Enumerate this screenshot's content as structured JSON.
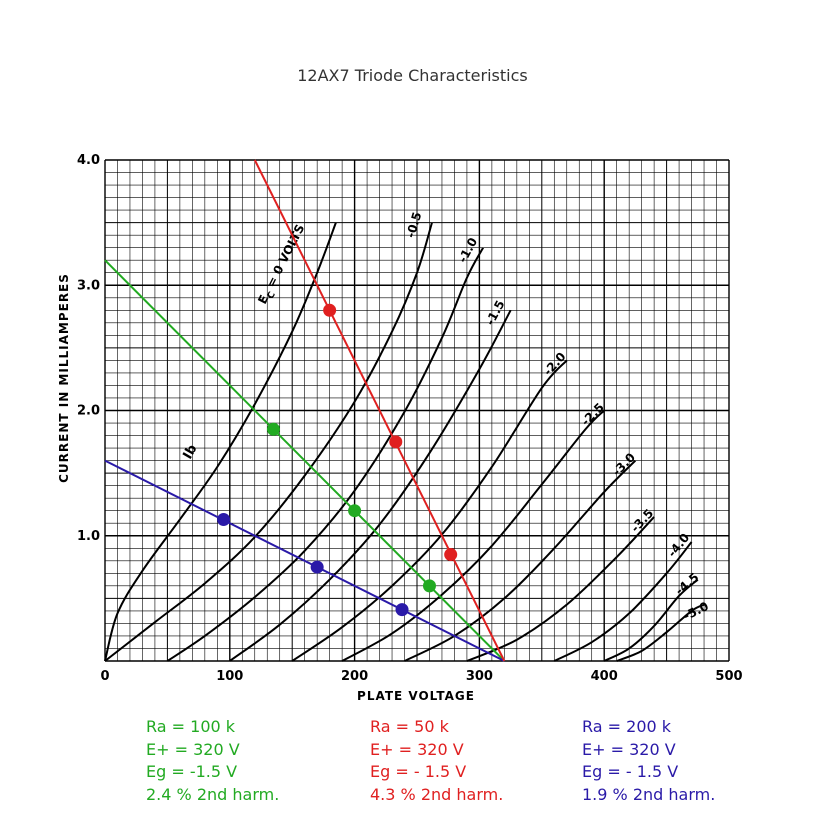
{
  "chart_data": {
    "type": "line",
    "title": "12AX7 Triode Characteristics",
    "xlabel": "PLATE VOLTAGE",
    "ylabel": "CURRENT IN MILLIAMPERES",
    "xlim": [
      0,
      500
    ],
    "ylim": [
      0,
      4.0
    ],
    "x_ticks": [
      {
        "value": 0,
        "label": "0"
      },
      {
        "value": 100,
        "label": "100"
      },
      {
        "value": 200,
        "label": "200"
      },
      {
        "value": 300,
        "label": "300"
      },
      {
        "value": 400,
        "label": "400"
      },
      {
        "value": 500,
        "label": "500"
      }
    ],
    "y_ticks": [
      {
        "value": 1.0,
        "label": "1.0"
      },
      {
        "value": 2.0,
        "label": "2.0"
      },
      {
        "value": 3.0,
        "label": "3.0"
      },
      {
        "value": 4.0,
        "label": "4.0"
      }
    ],
    "grid": true,
    "curve_label_prefix": "E",
    "curve_label_sub": "C",
    "curve_label_suffix": " = 0 VOLTS",
    "ib_label": "Ib",
    "grid_curves": [
      {
        "grid_voltage": "0",
        "label": "",
        "points": [
          [
            0,
            0
          ],
          [
            10,
            0.38
          ],
          [
            30,
            0.72
          ],
          [
            60,
            1.13
          ],
          [
            90,
            1.55
          ],
          [
            120,
            2.05
          ],
          [
            150,
            2.63
          ],
          [
            170,
            3.1
          ],
          [
            185,
            3.5
          ]
        ]
      },
      {
        "grid_voltage": "-0.5",
        "label": "-0.5",
        "points": [
          [
            0,
            0
          ],
          [
            40,
            0.31
          ],
          [
            80,
            0.62
          ],
          [
            120,
            0.99
          ],
          [
            160,
            1.48
          ],
          [
            200,
            2.07
          ],
          [
            230,
            2.63
          ],
          [
            250,
            3.1
          ],
          [
            262,
            3.5
          ]
        ]
      },
      {
        "grid_voltage": "-1.0",
        "label": "-1.0",
        "points": [
          [
            50,
            0
          ],
          [
            80,
            0.2
          ],
          [
            120,
            0.51
          ],
          [
            160,
            0.88
          ],
          [
            200,
            1.36
          ],
          [
            240,
            1.99
          ],
          [
            270,
            2.58
          ],
          [
            290,
            3.06
          ],
          [
            303,
            3.3
          ]
        ]
      },
      {
        "grid_voltage": "-1.5",
        "label": "-1.5",
        "points": [
          [
            100,
            0
          ],
          [
            140,
            0.29
          ],
          [
            180,
            0.65
          ],
          [
            220,
            1.09
          ],
          [
            260,
            1.66
          ],
          [
            300,
            2.33
          ],
          [
            325,
            2.8
          ]
        ]
      },
      {
        "grid_voltage": "-2.0",
        "label": "-2.0",
        "points": [
          [
            150,
            0
          ],
          [
            190,
            0.27
          ],
          [
            230,
            0.6
          ],
          [
            270,
            1.01
          ],
          [
            310,
            1.55
          ],
          [
            350,
            2.18
          ],
          [
            370,
            2.4
          ]
        ]
      },
      {
        "grid_voltage": "-2.5",
        "label": "-2.5",
        "points": [
          [
            190,
            0
          ],
          [
            230,
            0.22
          ],
          [
            270,
            0.53
          ],
          [
            310,
            0.92
          ],
          [
            350,
            1.41
          ],
          [
            385,
            1.85
          ],
          [
            400,
            2.0
          ]
        ]
      },
      {
        "grid_voltage": "-3.0",
        "label": "-3.0",
        "points": [
          [
            240,
            0
          ],
          [
            280,
            0.2
          ],
          [
            320,
            0.5
          ],
          [
            360,
            0.9
          ],
          [
            400,
            1.35
          ],
          [
            425,
            1.6
          ]
        ]
      },
      {
        "grid_voltage": "-3.5",
        "label": "-3.5",
        "points": [
          [
            290,
            0
          ],
          [
            330,
            0.17
          ],
          [
            370,
            0.45
          ],
          [
            410,
            0.83
          ],
          [
            440,
            1.15
          ]
        ]
      },
      {
        "grid_voltage": "-4.0",
        "label": "-4.0",
        "points": [
          [
            360,
            0
          ],
          [
            390,
            0.15
          ],
          [
            420,
            0.38
          ],
          [
            450,
            0.7
          ],
          [
            470,
            0.95
          ]
        ]
      },
      {
        "grid_voltage": "-4.5",
        "label": "-4.5",
        "points": [
          [
            400,
            0
          ],
          [
            420,
            0.1
          ],
          [
            440,
            0.28
          ],
          [
            460,
            0.52
          ],
          [
            475,
            0.65
          ]
        ]
      },
      {
        "grid_voltage": "-5.0",
        "label": "-5.0",
        "points": [
          [
            410,
            0
          ],
          [
            430,
            0.08
          ],
          [
            450,
            0.23
          ],
          [
            470,
            0.4
          ],
          [
            480,
            0.45
          ]
        ]
      }
    ],
    "load_lines": [
      {
        "name": "Ra = 50 k",
        "color": "#e02020",
        "points": [
          [
            120,
            4.0
          ],
          [
            320,
            0
          ]
        ],
        "operating_points": [
          [
            180,
            2.8
          ],
          [
            233,
            1.75
          ],
          [
            277,
            0.85
          ]
        ]
      },
      {
        "name": "Ra = 100 k",
        "color": "#22aa22",
        "points": [
          [
            0,
            3.2
          ],
          [
            320,
            0
          ]
        ],
        "operating_points": [
          [
            135,
            1.85
          ],
          [
            200,
            1.2
          ],
          [
            260,
            0.6
          ]
        ]
      },
      {
        "name": "Ra = 200 k",
        "color": "#2a1aa8",
        "points": [
          [
            0,
            1.6
          ],
          [
            320,
            0
          ]
        ],
        "operating_points": [
          [
            95,
            1.13
          ],
          [
            170,
            0.75
          ],
          [
            238,
            0.41
          ]
        ]
      }
    ]
  },
  "legends": {
    "green": {
      "color": "#22aa22",
      "ra": "Ra = 100 k",
      "eplus": "E+ = 320 V",
      "eg": "Eg = -1.5 V",
      "harm": "2.4 % 2nd harm."
    },
    "red": {
      "color": "#e02020",
      "ra": "Ra = 50 k",
      "eplus": "E+ = 320 V",
      "eg": "Eg = - 1.5 V",
      "harm": "4.3 % 2nd harm."
    },
    "blue": {
      "color": "#2a1aa8",
      "ra": "Ra = 200 k",
      "eplus": "E+ = 320 V",
      "eg": "Eg = - 1.5 V",
      "harm": "1.9 % 2nd harm."
    }
  }
}
